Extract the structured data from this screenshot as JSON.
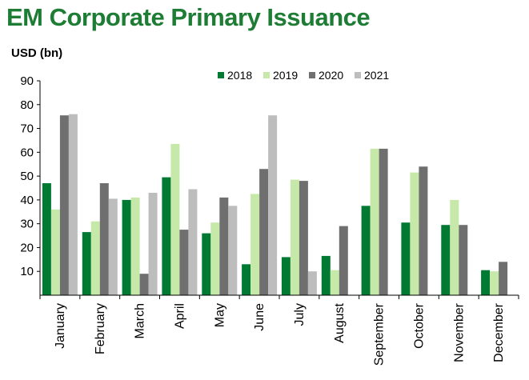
{
  "title": "EM Corporate Primary Issuance",
  "unit_label": "USD (bn)",
  "chart_data": {
    "type": "bar",
    "categories": [
      "January",
      "February",
      "March",
      "April",
      "May",
      "June",
      "July",
      "August",
      "September",
      "October",
      "November",
      "December"
    ],
    "series": [
      {
        "name": "2018",
        "color": "#007a33",
        "values": [
          47,
          26.5,
          40,
          49.5,
          26,
          13,
          16,
          16.5,
          37.5,
          30.5,
          29.5,
          10.5
        ]
      },
      {
        "name": "2019",
        "color": "#c6e8a8",
        "values": [
          36,
          31,
          41,
          63.5,
          30.5,
          42.5,
          48.5,
          10.5,
          61.5,
          51.5,
          40,
          10
        ]
      },
      {
        "name": "2020",
        "color": "#6f6f6f",
        "values": [
          75.5,
          47,
          9,
          27.5,
          41,
          53,
          48,
          29,
          61.5,
          54,
          29.5,
          14
        ]
      },
      {
        "name": "2021",
        "color": "#bdbdbd",
        "values": [
          76,
          40.5,
          43,
          44.5,
          37.5,
          75.5,
          10,
          null,
          null,
          null,
          null,
          null
        ]
      }
    ],
    "y_ticks": [
      "10",
      "20",
      "30",
      "40",
      "50",
      "60",
      "70",
      "80",
      "90"
    ],
    "ylim": [
      0,
      90
    ],
    "grid": false,
    "legend_position": "top-center"
  }
}
